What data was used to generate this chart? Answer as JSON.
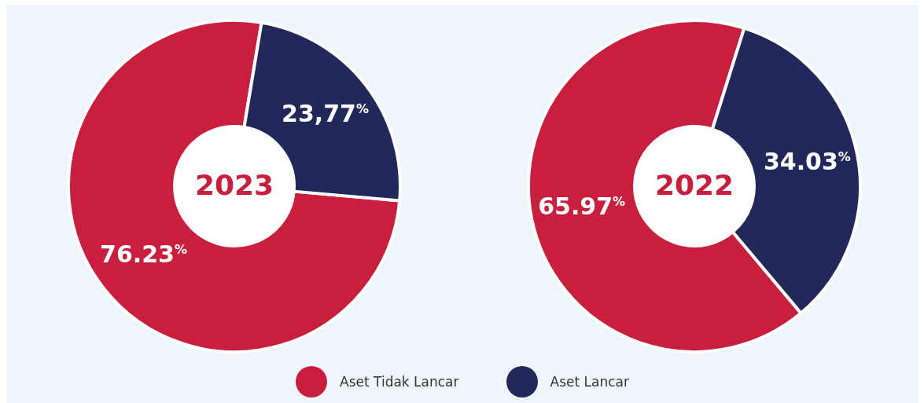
{
  "chart_data": [
    {
      "type": "donut",
      "title": "2023",
      "categories": [
        "Aset Tidak Lancar",
        "Aset Lancar"
      ],
      "values": [
        76.23,
        23.77
      ],
      "colors": [
        "#c91f3e",
        "#23285a"
      ],
      "value_labels": [
        "76.23%",
        "23,77%"
      ],
      "legend": "bottom"
    },
    {
      "type": "donut",
      "title": "2022",
      "categories": [
        null,
        null
      ],
      "values": [
        65.97,
        34.03
      ],
      "colors": [
        "#c91f3e",
        "#23285a"
      ],
      "value_labels": [
        "65.97%",
        "34.03%"
      ]
    }
  ]
}
